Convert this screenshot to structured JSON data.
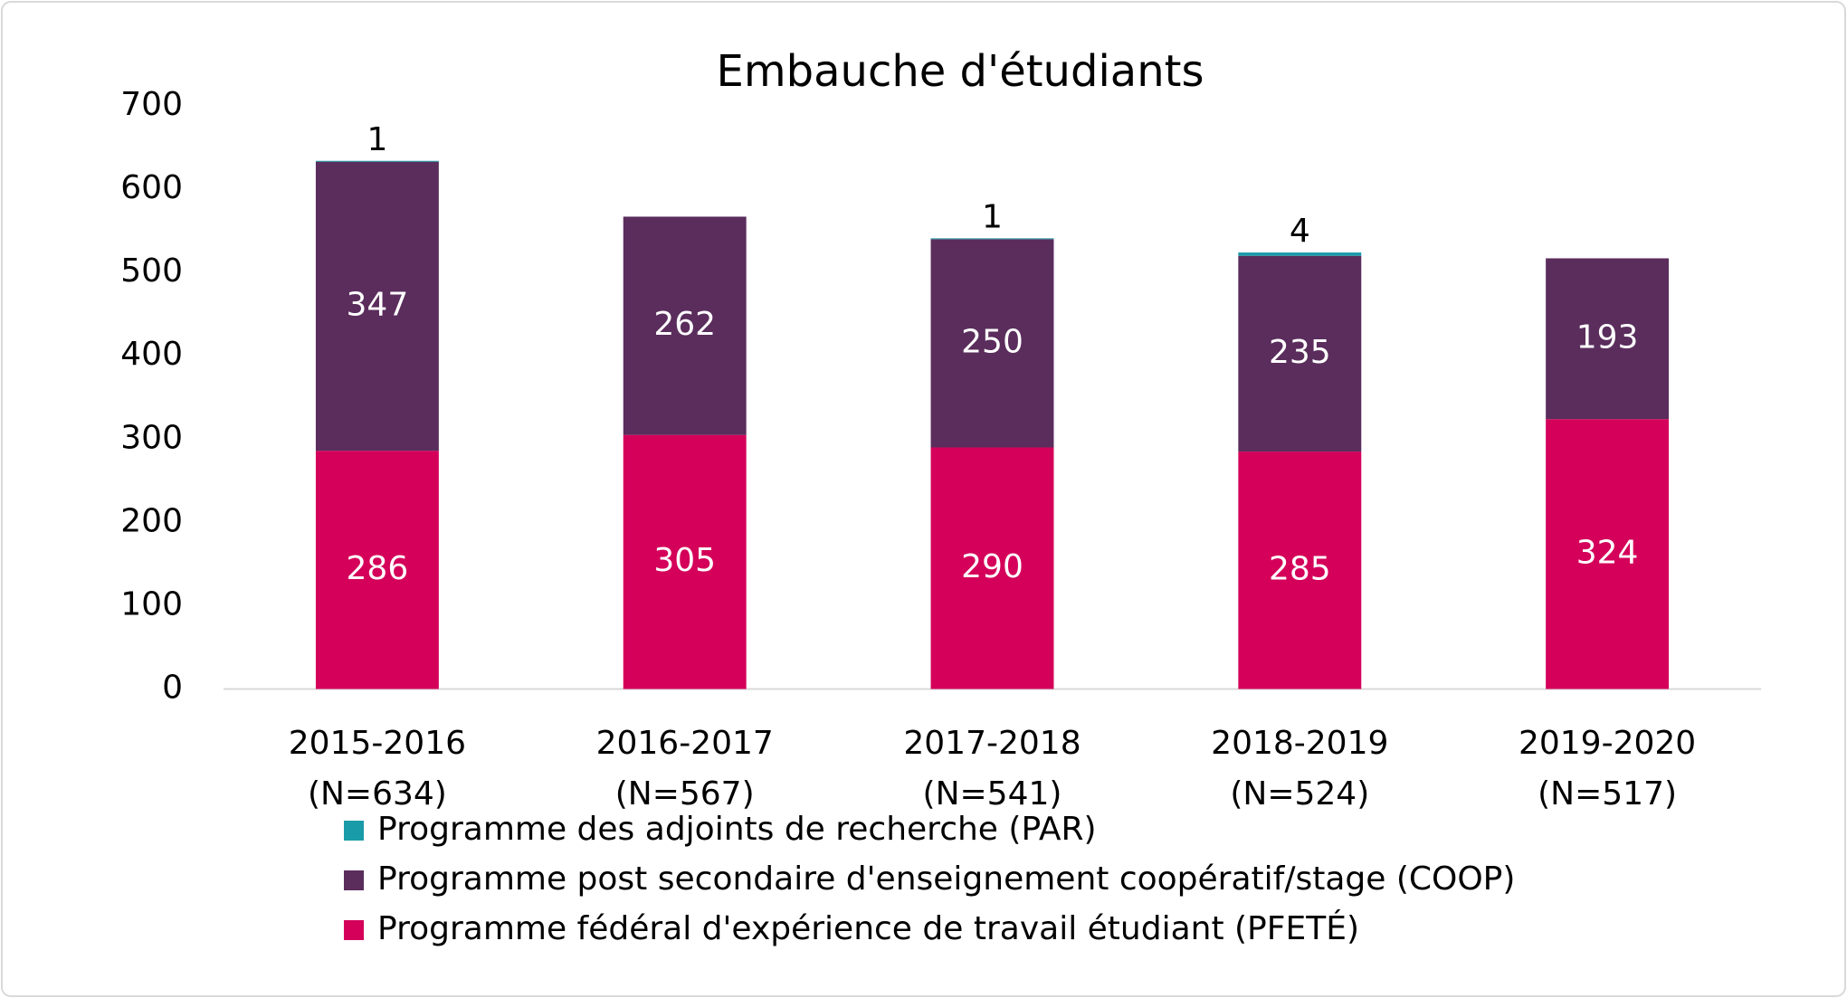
{
  "chart_data": {
    "type": "stacked_bar",
    "title": "Embauche d'étudiants",
    "categories": [
      [
        "2015-2016",
        "(N=634)"
      ],
      [
        "2016-2017",
        "(N=567)"
      ],
      [
        "2017-2018",
        "(N=541)"
      ],
      [
        "2018-2019",
        "(N=524)"
      ],
      [
        "2019-2020",
        "(N=517)"
      ]
    ],
    "series": [
      {
        "name": "Programme fédéral d'expérience de travail étudiant (PFETÉ)",
        "color": "#d4005a",
        "values": [
          286,
          305,
          290,
          285,
          324
        ]
      },
      {
        "name": "Programme post secondaire d'enseignement coopératif/stage (COOP)",
        "color": "#5a2d5c",
        "values": [
          347,
          262,
          250,
          235,
          193
        ]
      },
      {
        "name": "Programme des adjoints de recherche (PAR)",
        "color": "#1a9ba8",
        "values": [
          1,
          null,
          1,
          4,
          null
        ]
      }
    ],
    "ylim": [
      0,
      700
    ],
    "yticks": [
      0,
      100,
      200,
      300,
      400,
      500,
      600,
      700
    ],
    "grid": false
  }
}
